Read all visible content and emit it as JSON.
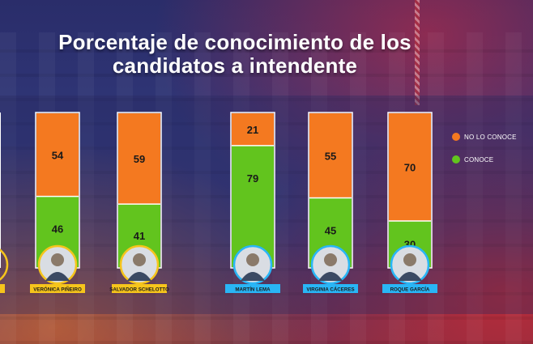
{
  "title_line1": "Porcentaje de conocimiento de los",
  "title_line2": "candidatos a intendente",
  "legend": [
    {
      "label": "NO LO CONOCE",
      "color": "#f47920"
    },
    {
      "label": "CONOCE",
      "color": "#62c41e"
    }
  ],
  "colors": {
    "no_conoce": "#f47920",
    "conoce": "#62c41e",
    "label_yellow": "#f6c51c",
    "label_cyan": "#29b6f6"
  },
  "chart_data": {
    "type": "bar",
    "stacked": true,
    "title": "Porcentaje de conocimiento de los candidatos a intendente",
    "categories": [
      "VERÓNICA PIÑEIRO",
      "SALVADOR SCHELOTTO",
      "MARTÍN LEMA",
      "VIRGINIA CÁCERES",
      "ROQUE GARCÍA"
    ],
    "category_colors": [
      "label_yellow",
      "label_yellow",
      "label_cyan",
      "label_cyan",
      "label_cyan"
    ],
    "series": [
      {
        "name": "CONOCE",
        "values": [
          46,
          41,
          79,
          45,
          30
        ]
      },
      {
        "name": "NO LO CONOCE",
        "values": [
          54,
          59,
          21,
          55,
          70
        ]
      }
    ],
    "ylim": [
      0,
      100
    ],
    "grid": false,
    "legend_position": "right"
  }
}
